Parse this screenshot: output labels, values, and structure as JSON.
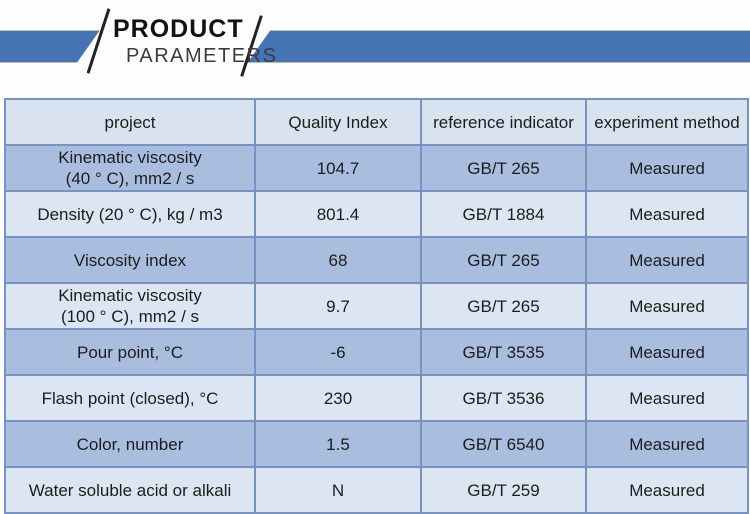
{
  "banner": {
    "title_line1": "PRODUCT",
    "title_line2": "PARAMETERS",
    "bar_color": "#4573b4"
  },
  "colors": {
    "accent_blue": "#4573b4",
    "table_border": "#7693c4",
    "header_row_bg": "#d9e3f0",
    "dark_row_bg": "#a9bedf",
    "light_row_bg": "#dce6f2",
    "text": "#1c1c1c"
  },
  "table": {
    "columns": [
      "project",
      "Quality Index",
      "reference indicator",
      "experiment method"
    ],
    "rows": [
      [
        "Kinematic viscosity\n(40 ° C), mm2 / s",
        "104.7",
        "GB/T 265",
        "Measured"
      ],
      [
        "Density (20 ° C), kg / m3",
        "801.4",
        "GB/T 1884",
        "Measured"
      ],
      [
        "Viscosity index",
        "68",
        "GB/T 265",
        "Measured"
      ],
      [
        "Kinematic viscosity\n(100 ° C), mm2 / s",
        "9.7",
        "GB/T 265",
        "Measured"
      ],
      [
        "Pour point, °C",
        "-6",
        "GB/T 3535",
        "Measured"
      ],
      [
        "Flash point (closed), °C",
        "230",
        "GB/T 3536",
        "Measured"
      ],
      [
        "Color, number",
        "1.5",
        "GB/T 6540",
        "Measured"
      ],
      [
        "Water soluble acid or alkali",
        "N",
        "GB/T 259",
        "Measured"
      ]
    ]
  }
}
